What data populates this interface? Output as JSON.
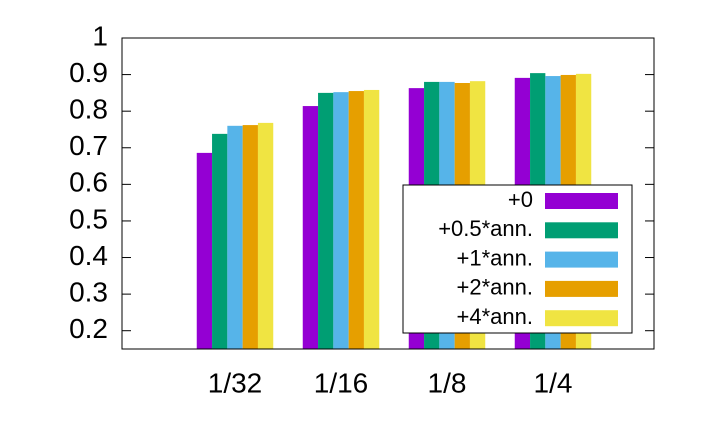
{
  "chart_data": {
    "type": "bar",
    "categories": [
      "1/32",
      "1/16",
      "1/8",
      "1/4"
    ],
    "series": [
      {
        "name": "+0",
        "color": "#9400d3",
        "values": [
          0.686,
          0.814,
          0.863,
          0.891
        ]
      },
      {
        "name": "+0.5*ann.",
        "color": "#009e73",
        "values": [
          0.738,
          0.85,
          0.88,
          0.904
        ]
      },
      {
        "name": "+1*ann.",
        "color": "#56b4e9",
        "values": [
          0.76,
          0.852,
          0.88,
          0.896
        ]
      },
      {
        "name": "+2*ann.",
        "color": "#e69f00",
        "values": [
          0.762,
          0.855,
          0.877,
          0.899
        ]
      },
      {
        "name": "+4*ann.",
        "color": "#f0e442",
        "values": [
          0.768,
          0.858,
          0.882,
          0.902
        ]
      }
    ],
    "ylim": [
      0.15,
      1
    ],
    "yticks": [
      0.2,
      0.3,
      0.4,
      0.5,
      0.6,
      0.7,
      0.8,
      0.9,
      1
    ],
    "legend": "bottom right"
  }
}
